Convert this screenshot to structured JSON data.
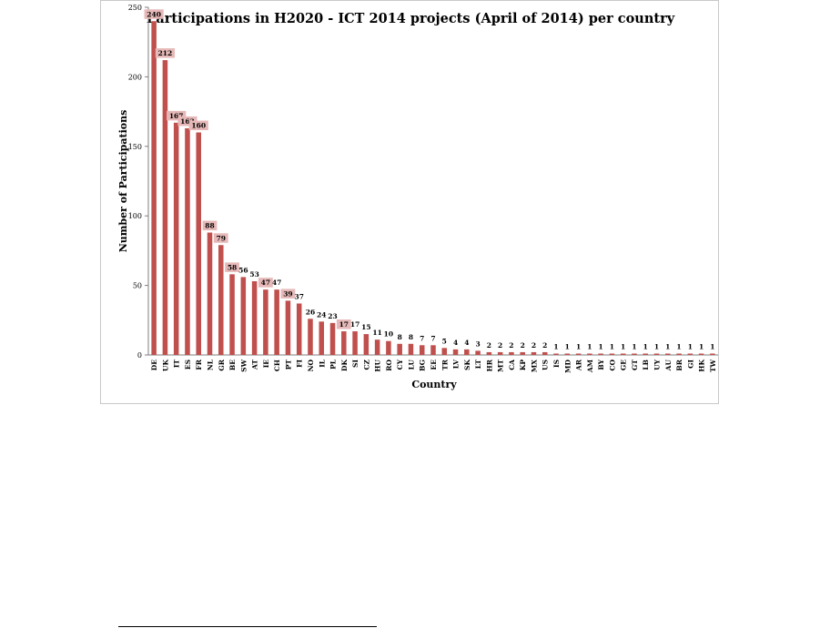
{
  "chart_data": {
    "type": "bar",
    "title": "Participations in H2020 - ICT 2014 projects (April of 2014) per country",
    "xlabel": "Country",
    "ylabel": "Number of Participations",
    "ylim": [
      0,
      250
    ],
    "yticks": [
      0,
      50,
      100,
      150,
      200,
      250
    ],
    "grid": false,
    "legend": "none",
    "bar_color": "#c0504d",
    "label_highlight_color": "#e6b9b8",
    "highlighted_labels": [
      "DE",
      "UK",
      "IT",
      "ES",
      "FR",
      "NL",
      "GR",
      "BE",
      "IE",
      "PT",
      "DK"
    ],
    "categories": [
      "DE",
      "UK",
      "IT",
      "ES",
      "FR",
      "NL",
      "GR",
      "BE",
      "SW",
      "AT",
      "IE",
      "CH",
      "PT",
      "FI",
      "NO",
      "IL",
      "PL",
      "DK",
      "SI",
      "CZ",
      "HU",
      "RO",
      "CY",
      "LU",
      "BG",
      "EE",
      "TR",
      "LV",
      "SK",
      "LT",
      "HR",
      "MT",
      "CA",
      "KP",
      "MX",
      "US",
      "IS",
      "MD",
      "AR",
      "AM",
      "BY",
      "CO",
      "GE",
      "GT",
      "LB",
      "UY",
      "AU",
      "BR",
      "GI",
      "HK",
      "TW"
    ],
    "values": [
      240,
      212,
      167,
      163,
      160,
      88,
      79,
      58,
      56,
      53,
      47,
      47,
      39,
      37,
      26,
      24,
      23,
      17,
      17,
      15,
      11,
      10,
      8,
      8,
      7,
      7,
      5,
      4,
      4,
      3,
      2,
      2,
      2,
      2,
      2,
      2,
      1,
      1,
      1,
      1,
      1,
      1,
      1,
      1,
      1,
      1,
      1,
      1,
      1,
      1,
      1
    ]
  }
}
